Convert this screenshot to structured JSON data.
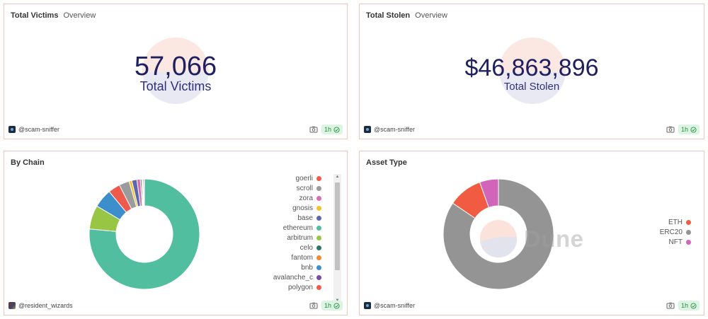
{
  "victims_card": {
    "title": "Total Victims",
    "tab": "Overview",
    "value": "57,066",
    "label": "Total Victims",
    "author": "@scam-sniffer",
    "freshness": "1h"
  },
  "stolen_card": {
    "title": "Total Stolen",
    "tab": "Overview",
    "value": "$46,863,896",
    "label": "Total Stolen",
    "author": "@scam-sniffer",
    "freshness": "1h"
  },
  "chain_card": {
    "title": "By Chain",
    "author": "@resident_wizards",
    "freshness": "1h",
    "legend_scroll_fraction": 0.0
  },
  "asset_card": {
    "title": "Asset Type",
    "author": "@scam-sniffer",
    "freshness": "1h",
    "watermark": "Dune"
  },
  "icons": {
    "camera": "camera-icon",
    "check": "check-circle-icon",
    "scroll_up": "scroll-up-arrow-icon",
    "scroll_down": "scroll-down-arrow-icon"
  },
  "colors": {
    "card_border": "#efc8bd",
    "counter_text": "#202060",
    "fresh_badge_bg": "#dcf4e2",
    "fresh_badge_text": "#2d8a47"
  },
  "chart_data": [
    {
      "type": "pie",
      "donut": true,
      "title": "By Chain",
      "categories": [
        "ethereum",
        "arbitrum",
        "bnb",
        "goerli",
        "scroll",
        "gnosis",
        "base",
        "zora",
        "celo",
        "fantom",
        "avalanche_c",
        "polygon"
      ],
      "legend_visible": [
        "goerli",
        "scroll",
        "zora",
        "gnosis",
        "base",
        "ethereum",
        "arbitrum",
        "celo",
        "fantom",
        "bnb",
        "avalanche_c",
        "polygon"
      ],
      "values": [
        76.5,
        7.0,
        5.5,
        3.5,
        3.0,
        0.8,
        1.5,
        1.0,
        0.4,
        0.3,
        0.3,
        0.2
      ],
      "colors": {
        "goerli": "#ee5a4b",
        "scroll": "#9b9b9b",
        "zora": "#d66db3",
        "gnosis": "#f2c12e",
        "base": "#5c66ad",
        "ethereum": "#52bea0",
        "arbitrum": "#98c644",
        "celo": "#2f7565",
        "fantom": "#ee8a32",
        "bnb": "#3c8fcb",
        "avalanche_c": "#7a4aa6",
        "polygon": "#ee5a4b"
      },
      "legend_placement": "right"
    },
    {
      "type": "pie",
      "donut": true,
      "title": "Asset Type",
      "categories": [
        "ERC20",
        "ETH",
        "NFT"
      ],
      "values": [
        84.5,
        10.0,
        5.5
      ],
      "colors": [
        "#949494",
        "#f15b42",
        "#d165b9"
      ],
      "legend_order": [
        "ETH",
        "ERC20",
        "NFT"
      ],
      "legend_colors": [
        "#f15b42",
        "#949494",
        "#d165b9"
      ],
      "legend_placement": "right"
    }
  ]
}
